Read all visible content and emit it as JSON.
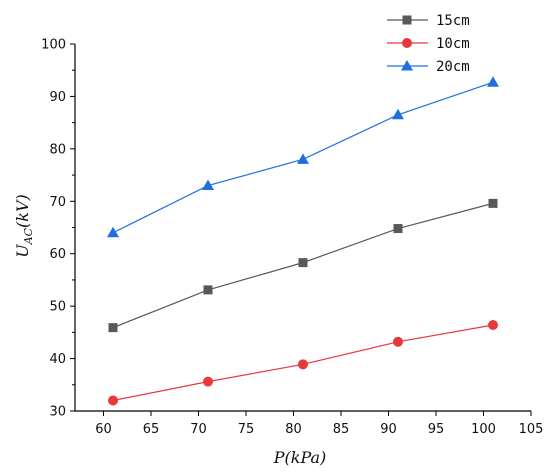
{
  "chart_data": {
    "type": "line",
    "x": [
      61,
      71,
      81,
      91,
      101
    ],
    "series": [
      {
        "name": "15cm",
        "values": [
          45.9,
          53.1,
          58.3,
          64.8,
          69.6
        ],
        "color": "#595959",
        "marker": "square"
      },
      {
        "name": "10cm",
        "values": [
          32.0,
          35.6,
          38.9,
          43.2,
          46.4
        ],
        "color": "#e8383d",
        "marker": "circle"
      },
      {
        "name": "20cm",
        "values": [
          64.0,
          73.0,
          78.0,
          86.5,
          92.7
        ],
        "color": "#1f6fe0",
        "marker": "triangle"
      }
    ],
    "xlabel": {
      "main": "P",
      "rest": "(kPa)"
    },
    "ylabel": {
      "main": "U",
      "sub": "AC",
      "rest": "(kV)"
    },
    "xlim": [
      57,
      105
    ],
    "ylim": [
      30,
      100
    ],
    "xticks": [
      60,
      65,
      70,
      75,
      80,
      85,
      90,
      95,
      100,
      105
    ],
    "yticks": [
      30,
      40,
      50,
      60,
      70,
      80,
      90,
      100
    ],
    "grid": false,
    "legend_position": "top-right"
  }
}
